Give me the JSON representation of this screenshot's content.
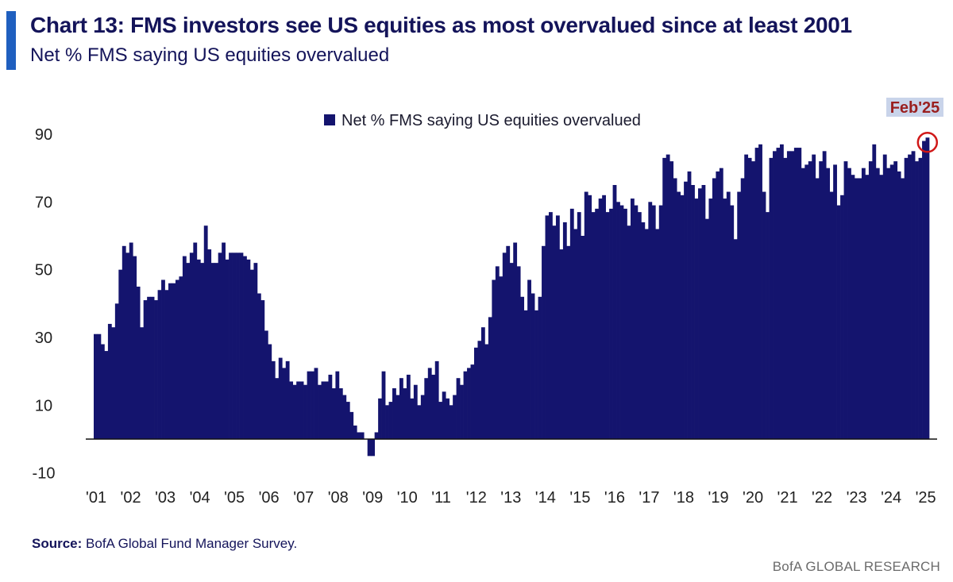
{
  "header": {
    "title": "Chart 13: FMS investors see US equities as most overvalued since at least 2001",
    "subtitle": "Net % FMS saying US equities overvalued"
  },
  "footer": {
    "source_label": "Source:",
    "source_text": "BofA Global Fund Manager Survey.",
    "brand": "BofA GLOBAL RESEARCH"
  },
  "colors": {
    "bar": "#14146e",
    "title": "#14145a",
    "accent": "#1f5fbf",
    "highlight": "#c00000",
    "highlight_bg": "#c9d4ea"
  },
  "chart_data": {
    "type": "bar",
    "title": "Net % FMS saying US equities overvalued",
    "legend": {
      "label": "Net % FMS saying US equities overvalued",
      "position": "top-center"
    },
    "annotation": {
      "label": "Feb'25",
      "value": 89,
      "marker": "red circle on latest bar"
    },
    "xlabel": "",
    "ylabel": "",
    "ylim": [
      -10,
      95
    ],
    "yticks": [
      90,
      70,
      50,
      30,
      10,
      -10
    ],
    "x_start": 2001.0,
    "x_end": 2025.17,
    "xticks": [
      "'01",
      "'02",
      "'03",
      "'04",
      "'05",
      "'06",
      "'07",
      "'08",
      "'09",
      "'10",
      "'11",
      "'12",
      "'13",
      "'14",
      "'15",
      "'16",
      "'17",
      "'18",
      "'19",
      "'20",
      "'21",
      "'22",
      "'23",
      "'24",
      "'25"
    ],
    "frequency": "monthly",
    "values": [
      31,
      31,
      28,
      26,
      34,
      33,
      40,
      50,
      57,
      55,
      58,
      54,
      45,
      33,
      41,
      42,
      42,
      41,
      44,
      47,
      44,
      46,
      46,
      47,
      48,
      54,
      52,
      55,
      58,
      53,
      52,
      63,
      56,
      52,
      52,
      55,
      58,
      53,
      55,
      55,
      55,
      55,
      54,
      53,
      50,
      52,
      43,
      41,
      32,
      28,
      23,
      18,
      24,
      21,
      23,
      17,
      16,
      17,
      17,
      16,
      20,
      20,
      21,
      16,
      17,
      17,
      19,
      15,
      20,
      15,
      13,
      11,
      8,
      4,
      2,
      2,
      0,
      -5,
      -5,
      2,
      12,
      20,
      10,
      11,
      15,
      13,
      18,
      15,
      19,
      12,
      16,
      10,
      13,
      18,
      21,
      19,
      23,
      11,
      14,
      12,
      10,
      13,
      18,
      16,
      20,
      21,
      22,
      27,
      29,
      33,
      28,
      36,
      47,
      51,
      48,
      55,
      57,
      52,
      58,
      51,
      42,
      38,
      47,
      43,
      38,
      42,
      57,
      66,
      67,
      63,
      66,
      56,
      64,
      57,
      68,
      62,
      67,
      60,
      73,
      72,
      67,
      68,
      71,
      72,
      67,
      68,
      75,
      70,
      69,
      68,
      63,
      71,
      69,
      67,
      64,
      62,
      70,
      69,
      62,
      69,
      83,
      84,
      82,
      77,
      73,
      72,
      76,
      79,
      75,
      71,
      74,
      75,
      65,
      71,
      77,
      79,
      80,
      71,
      73,
      69,
      59,
      73,
      77,
      84,
      83,
      82,
      86,
      87,
      73,
      67,
      83,
      85,
      86,
      87,
      83,
      85,
      85,
      86,
      86,
      80,
      81,
      82,
      84,
      77,
      82,
      85,
      80,
      73,
      81,
      69,
      72,
      82,
      80,
      78,
      77,
      77,
      80,
      78,
      82,
      87,
      80,
      78,
      84,
      80,
      81,
      82,
      79,
      77,
      83,
      84,
      85,
      82,
      83,
      88,
      89
    ]
  }
}
